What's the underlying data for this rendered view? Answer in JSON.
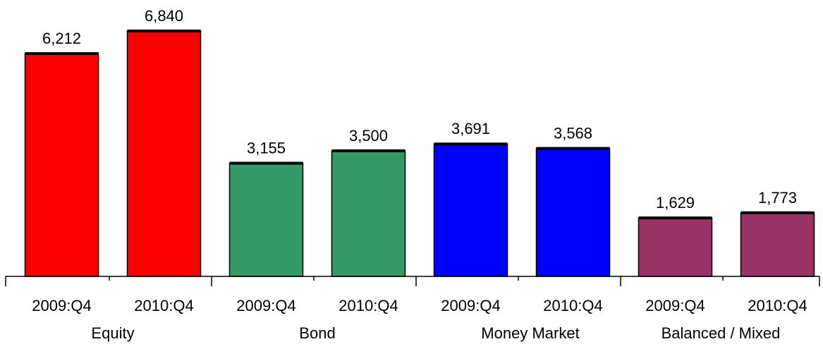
{
  "chart_data": {
    "type": "bar",
    "groups": [
      {
        "label": "Equity",
        "color": "#ff0000",
        "bars": [
          {
            "category": "2009:Q4",
            "value": 6212,
            "label": "6,212"
          },
          {
            "category": "2010:Q4",
            "value": 6840,
            "label": "6,840"
          }
        ]
      },
      {
        "label": "Bond",
        "color": "#339966",
        "bars": [
          {
            "category": "2009:Q4",
            "value": 3155,
            "label": "3,155"
          },
          {
            "category": "2010:Q4",
            "value": 3500,
            "label": "3,500"
          }
        ]
      },
      {
        "label": "Money Market",
        "color": "#0000ff",
        "bars": [
          {
            "category": "2009:Q4",
            "value": 3691,
            "label": "3,691"
          },
          {
            "category": "2010:Q4",
            "value": 3568,
            "label": "3,568"
          }
        ]
      },
      {
        "label": "Balanced / Mixed",
        "color": "#993366",
        "bars": [
          {
            "category": "2009:Q4",
            "value": 1629,
            "label": "1,629"
          },
          {
            "category": "2010:Q4",
            "value": 1773,
            "label": "1,773"
          }
        ]
      }
    ],
    "title": "",
    "xlabel": "",
    "ylabel": "",
    "ylim": [
      0,
      6840
    ],
    "grid": false,
    "legend": "none"
  }
}
